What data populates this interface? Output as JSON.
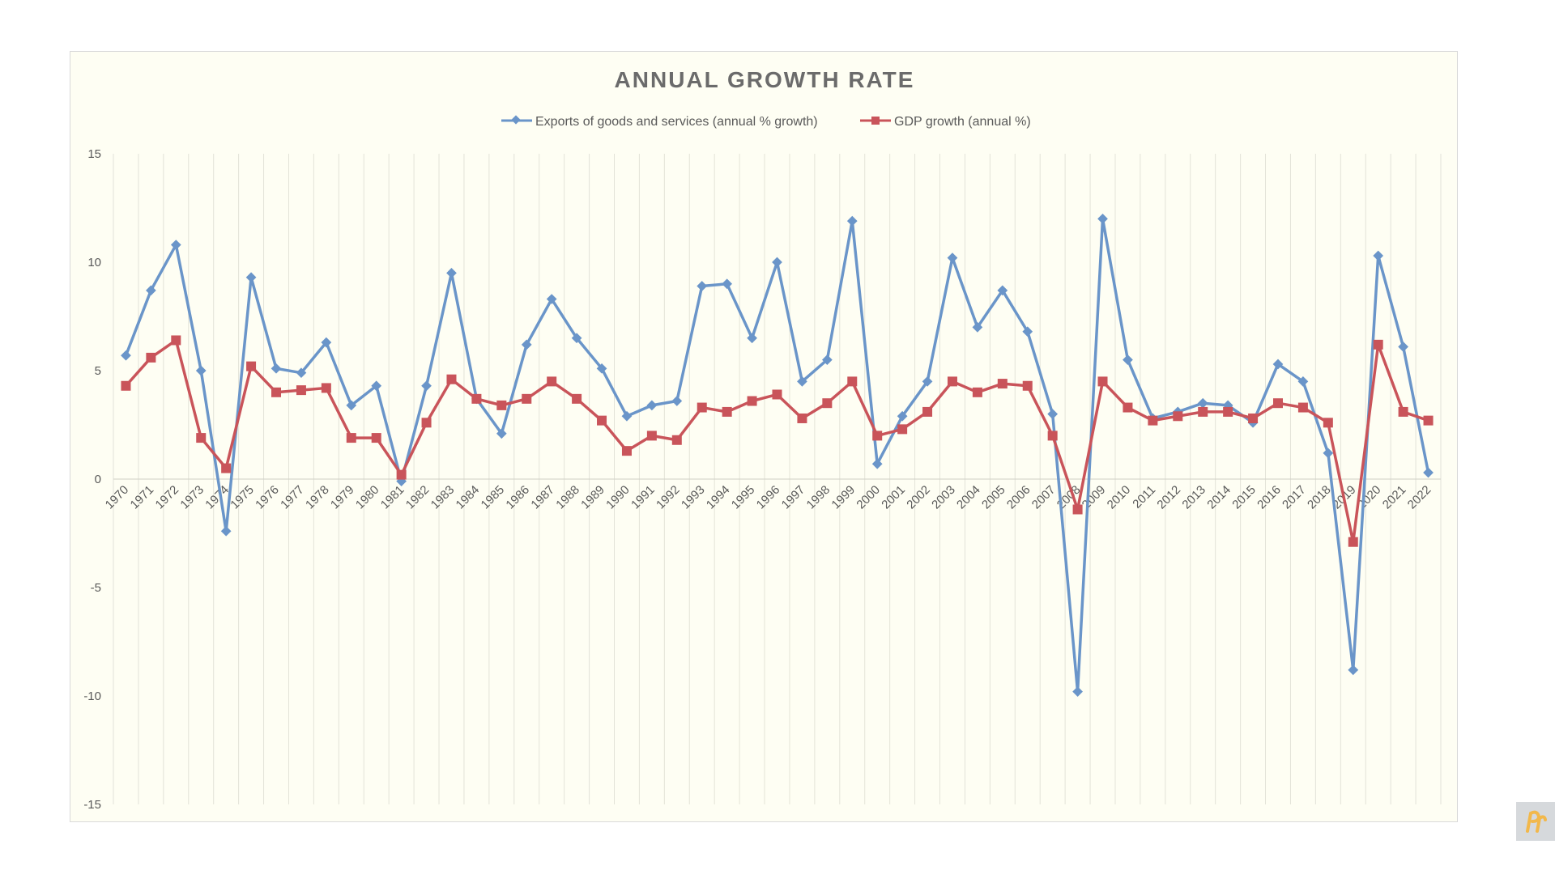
{
  "chart_data": {
    "type": "line",
    "title": "ANNUAL GROWTH RATE",
    "categories": [
      "1970",
      "1971",
      "1972",
      "1973",
      "1974",
      "1975",
      "1976",
      "1977",
      "1978",
      "1979",
      "1980",
      "1981",
      "1982",
      "1983",
      "1984",
      "1985",
      "1986",
      "1987",
      "1988",
      "1989",
      "1990",
      "1991",
      "1992",
      "1993",
      "1994",
      "1995",
      "1996",
      "1997",
      "1998",
      "1999",
      "2000",
      "2001",
      "2002",
      "2003",
      "2004",
      "2005",
      "2006",
      "2007",
      "2008",
      "2009",
      "2010",
      "2011",
      "2012",
      "2013",
      "2014",
      "2015",
      "2016",
      "2017",
      "2018",
      "2019",
      "2020",
      "2021",
      "2022"
    ],
    "series": [
      {
        "name": "Exports of goods and services (annual % growth)",
        "color": "#6a95c9",
        "marker": "diamond",
        "values": [
          5.7,
          8.7,
          10.8,
          5.0,
          -2.4,
          9.3,
          5.1,
          4.9,
          6.3,
          3.4,
          4.3,
          -0.1,
          4.3,
          9.5,
          3.7,
          2.1,
          6.2,
          8.3,
          6.5,
          5.1,
          2.9,
          3.4,
          3.6,
          8.9,
          9.0,
          6.5,
          10.0,
          4.5,
          5.5,
          11.9,
          0.7,
          2.9,
          4.5,
          10.2,
          7.0,
          8.7,
          6.8,
          3.0,
          -9.8,
          12.0,
          5.5,
          2.8,
          3.1,
          3.5,
          3.4,
          2.6,
          5.3,
          4.5,
          1.2,
          -8.8,
          10.3,
          6.1,
          0.3
        ]
      },
      {
        "name": "GDP growth (annual %)",
        "color": "#c9545a",
        "marker": "square",
        "values": [
          4.3,
          5.6,
          6.4,
          1.9,
          0.5,
          5.2,
          4.0,
          4.1,
          4.2,
          1.9,
          1.9,
          0.2,
          2.6,
          4.6,
          3.7,
          3.4,
          3.7,
          4.5,
          3.7,
          2.7,
          1.3,
          2.0,
          1.8,
          3.3,
          3.1,
          3.6,
          3.9,
          2.8,
          3.5,
          4.5,
          2.0,
          2.3,
          3.1,
          4.5,
          4.0,
          4.4,
          4.3,
          2.0,
          -1.4,
          4.5,
          3.3,
          2.7,
          2.9,
          3.1,
          3.1,
          2.8,
          3.5,
          3.3,
          2.6,
          -2.9,
          6.2,
          3.1,
          2.7
        ]
      }
    ],
    "ylim": [
      -15,
      15
    ],
    "yticks": [
      15,
      10,
      5,
      0,
      -5,
      -10,
      -15
    ],
    "legend_position": "top",
    "grid": "vertical",
    "xlabel": "",
    "ylabel": ""
  }
}
